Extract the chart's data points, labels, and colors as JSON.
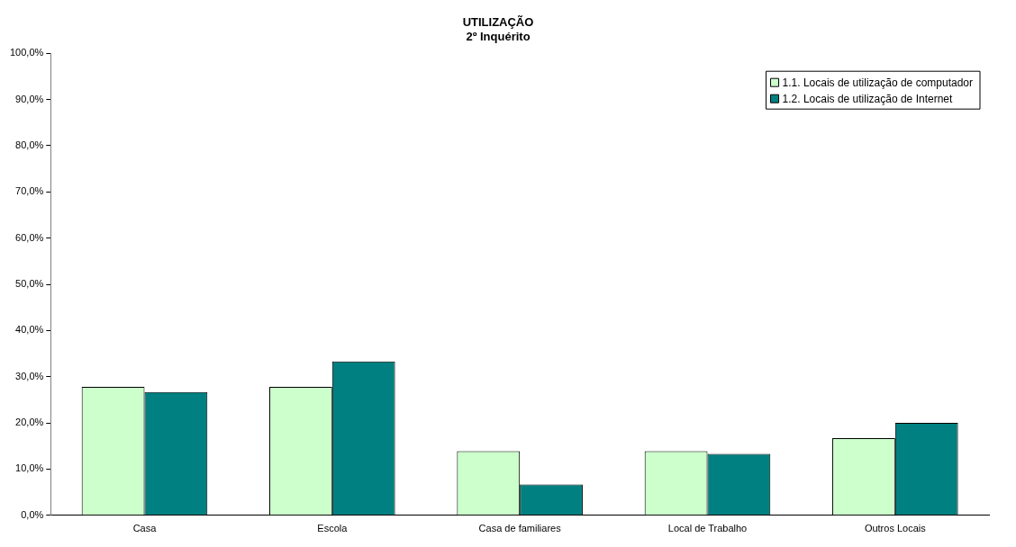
{
  "chart_data": {
    "type": "bar",
    "title": "UTILIZAÇÃO",
    "subtitle": "2º Inquérito",
    "categories": [
      "Casa",
      "Escola",
      "Casa de familiares",
      "Local de Trabalho",
      "Outros Locais"
    ],
    "series": [
      {
        "name": "1.1. Locais de utilização de computador",
        "color": "#ccffcc",
        "values": [
          27.8,
          27.8,
          13.9,
          13.9,
          16.7
        ]
      },
      {
        "name": "1.2. Locais de utilização de Internet",
        "color": "#008080",
        "values": [
          26.7,
          33.3,
          6.7,
          13.3,
          20.0
        ]
      }
    ],
    "ylim": [
      0,
      100
    ],
    "yticks": [
      {
        "value": 0,
        "label": "0,0%"
      },
      {
        "value": 10,
        "label": "10,0%"
      },
      {
        "value": 20,
        "label": "20,0%"
      },
      {
        "value": 30,
        "label": "30,0%"
      },
      {
        "value": 40,
        "label": "40,0%"
      },
      {
        "value": 50,
        "label": "50,0%"
      },
      {
        "value": 60,
        "label": "60,0%"
      },
      {
        "value": 70,
        "label": "70,0%"
      },
      {
        "value": 80,
        "label": "80,0%"
      },
      {
        "value": 90,
        "label": "90,0%"
      },
      {
        "value": 100,
        "label": "100,0%"
      }
    ],
    "grid": false,
    "legend": "top right"
  }
}
